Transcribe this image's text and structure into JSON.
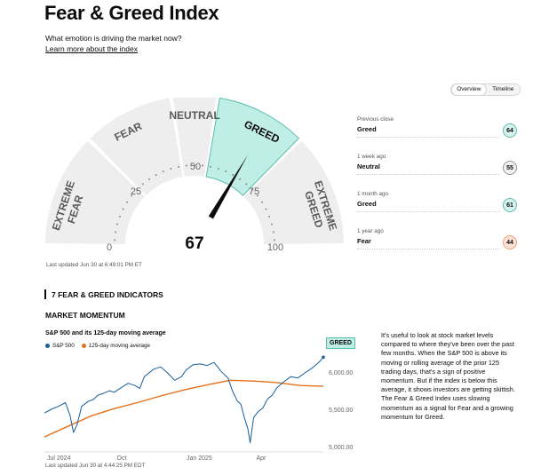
{
  "header": {
    "title": "Fear & Greed Index",
    "subtitle": "What emotion is driving the market now?",
    "learn_more": "Learn more about the index"
  },
  "view_toggle": {
    "options": [
      "Overview",
      "Timeline"
    ],
    "active": "Overview"
  },
  "gauge": {
    "value": 67,
    "value_text": "67",
    "rating": "Greed",
    "segments": [
      {
        "label": "EXTREME FEAR",
        "range": [
          0,
          25
        ]
      },
      {
        "label": "FEAR",
        "range": [
          25,
          45
        ]
      },
      {
        "label": "NEUTRAL",
        "range": [
          45,
          55
        ]
      },
      {
        "label": "GREED",
        "range": [
          55,
          75
        ]
      },
      {
        "label": "EXTREME GREED",
        "range": [
          75,
          100
        ]
      }
    ],
    "scale_labels": [
      "0",
      "25",
      "50",
      "75",
      "100"
    ],
    "last_updated": "Last updated Jun 30 at 6:49:01 PM ET",
    "colors": {
      "active": "#bfeee6",
      "active_border": "#5cbfae",
      "inactive": "#eeeeee",
      "needle": "#0c0c0c"
    }
  },
  "history": [
    {
      "label": "Previous close",
      "rating": "Greed",
      "value": "64",
      "color": "#5cbfae",
      "bg": "#d8f3ee"
    },
    {
      "label": "1 week ago",
      "rating": "Neutral",
      "value": "55",
      "color": "#999999",
      "bg": "#f0f0f0"
    },
    {
      "label": "1 month ago",
      "rating": "Greed",
      "value": "61",
      "color": "#5cbfae",
      "bg": "#d8f3ee"
    },
    {
      "label": "1 year ago",
      "rating": "Fear",
      "value": "44",
      "color": "#f2a07a",
      "bg": "#fde3d6"
    }
  ],
  "indicators": {
    "header": "7 FEAR & GREED INDICATORS"
  },
  "market_momentum": {
    "title": "MARKET MOMENTUM",
    "chart_title": "S&P 500 and its 125-day moving average",
    "rating_badge": "GREED",
    "last_updated": "Last updated Jun 30 at 4:44:25 PM EDT",
    "description": "It's useful to look at stock market levels compared to where they've been over the past few months. When the S&P 500 is above its moving or rolling average of the prior 125 trading days, that's a sign of positive momentum. But if the index is below this average, it shows investors are getting skittish. The Fear & Greed Index uses slowing momentum as a signal for Fear and a growing momentum for Greed."
  },
  "chart_data": {
    "type": "line",
    "title": "S&P 500 and its 125-day moving average",
    "x_ticks": [
      "Jul 2024",
      "Oct",
      "Jan 2025",
      "Apr"
    ],
    "x_tick_positions": [
      0,
      3,
      6,
      9
    ],
    "y_ticks": [
      "5,000.00",
      "5,500.00",
      "6,000.00"
    ],
    "ylim": [
      4950,
      6250
    ],
    "xlim": [
      0,
      12
    ],
    "grid": false,
    "legend": "top-left",
    "series": [
      {
        "name": "S&P 500",
        "color": "#1a5d99",
        "x": [
          0,
          0.3,
          0.6,
          0.9,
          1.1,
          1.25,
          1.4,
          1.6,
          1.9,
          2.1,
          2.3,
          2.5,
          2.8,
          3.0,
          3.3,
          3.6,
          3.9,
          4.1,
          4.3,
          4.5,
          4.7,
          5.0,
          5.3,
          5.6,
          5.9,
          6.1,
          6.4,
          6.7,
          7.0,
          7.3,
          7.6,
          7.9,
          8.1,
          8.3,
          8.45,
          8.6,
          8.75,
          8.85,
          9.0,
          9.2,
          9.4,
          9.6,
          9.8,
          10.0,
          10.3,
          10.6,
          10.9,
          11.2,
          11.5,
          11.8,
          12.0
        ],
        "values": [
          5460,
          5510,
          5550,
          5600,
          5430,
          5200,
          5300,
          5550,
          5620,
          5640,
          5700,
          5720,
          5760,
          5740,
          5800,
          5860,
          5830,
          5790,
          5950,
          6000,
          6050,
          6080,
          6000,
          5900,
          5950,
          6040,
          6110,
          6120,
          6100,
          6140,
          6020,
          5930,
          5750,
          5620,
          5580,
          5400,
          5250,
          5060,
          5400,
          5480,
          5530,
          5650,
          5700,
          5800,
          5880,
          5950,
          5930,
          6000,
          6060,
          6140,
          6210
        ]
      },
      {
        "name": "125-day moving average",
        "color": "#e56f1a",
        "x": [
          0,
          1,
          2,
          3,
          4,
          5,
          6,
          7,
          8,
          9,
          10,
          11,
          12
        ],
        "values": [
          5140,
          5280,
          5420,
          5520,
          5600,
          5690,
          5770,
          5840,
          5900,
          5890,
          5870,
          5830,
          5820
        ]
      }
    ]
  }
}
